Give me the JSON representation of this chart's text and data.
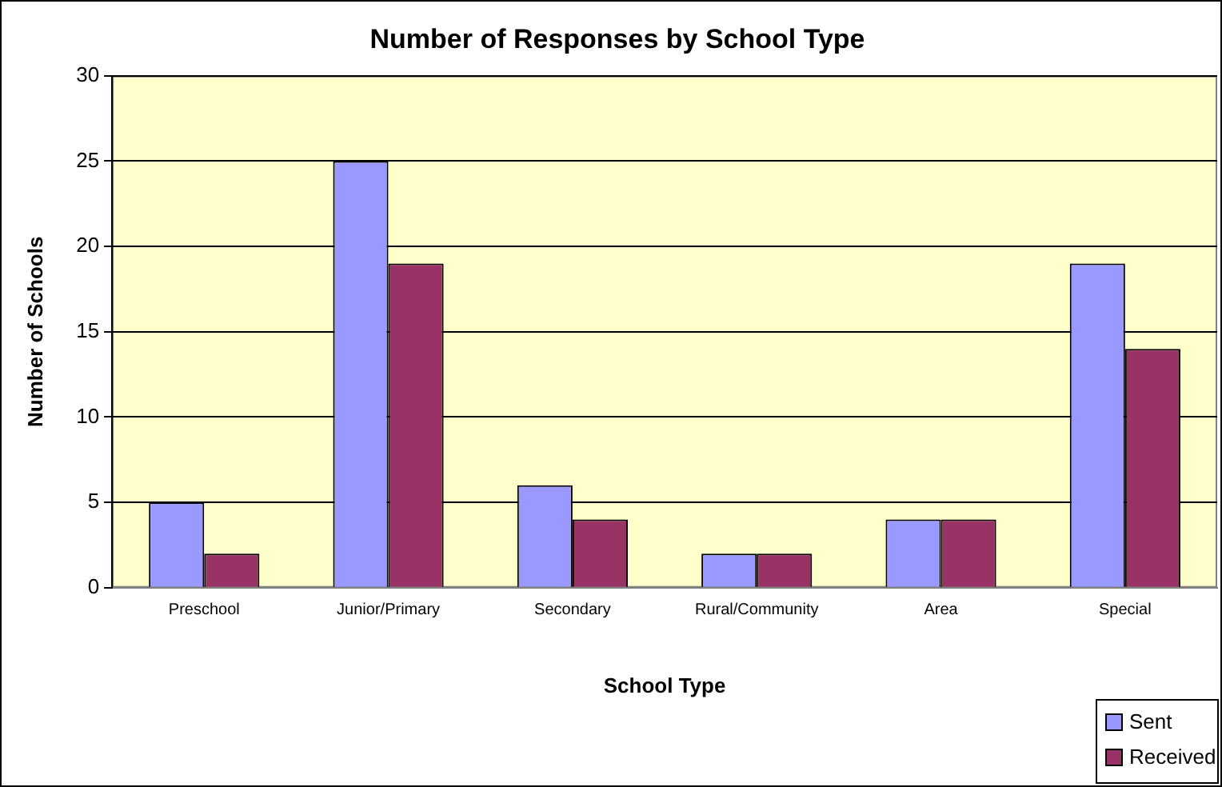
{
  "chart_data": {
    "type": "bar",
    "title": "Number of Responses by School Type",
    "xlabel": "School Type",
    "ylabel": "Number of Schools",
    "categories": [
      "Preschool",
      "Junior/Primary",
      "Secondary",
      "Rural/Community",
      "Area",
      "Special"
    ],
    "series": [
      {
        "name": "Sent",
        "color": "#9999ff",
        "values": [
          5,
          25,
          6,
          2,
          4,
          19
        ]
      },
      {
        "name": "Received",
        "color": "#993366",
        "values": [
          2,
          19,
          4,
          2,
          4,
          14
        ]
      }
    ],
    "ylim": [
      0,
      30
    ],
    "yticks": [
      0,
      5,
      10,
      15,
      20,
      25,
      30
    ],
    "grid": "y",
    "legend": "bottom right"
  }
}
